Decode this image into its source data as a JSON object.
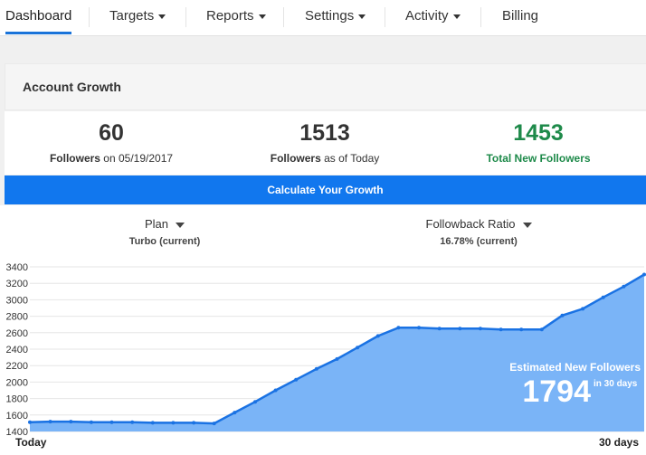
{
  "nav": {
    "items": [
      {
        "label": "Dashboard",
        "active": true
      },
      {
        "label": "Targets",
        "dropdown": true
      },
      {
        "label": "Reports",
        "dropdown": true
      },
      {
        "label": "Settings",
        "dropdown": true
      },
      {
        "label": "Activity",
        "dropdown": true
      },
      {
        "label": "Billing"
      }
    ]
  },
  "card": {
    "title": "Account Growth",
    "stats": [
      {
        "value": "60",
        "label_bold": "Followers",
        "label_rest": " on 05/19/2017"
      },
      {
        "value": "1513",
        "label_bold": "Followers",
        "label_rest": " as of Today"
      },
      {
        "value": "1453",
        "label_bold": "Total New Followers",
        "label_rest": ""
      }
    ],
    "calculate_button": "Calculate Your Growth",
    "plan": {
      "title": "Plan",
      "value": "Turbo (current)"
    },
    "followback": {
      "title": "Followback Ratio",
      "value": "16.78% (current)"
    }
  },
  "estimate": {
    "title": "Estimated New Followers",
    "value": "1794",
    "unit": "in 30 days"
  },
  "colors": {
    "accent": "#1177ee",
    "green": "#1e8a4a",
    "area_fill": "#7ab4f7",
    "line": "#1a72e3"
  },
  "chart_data": {
    "type": "area",
    "ylim": [
      1400,
      3400
    ],
    "yticks": [
      1400,
      1600,
      1800,
      2000,
      2200,
      2400,
      2600,
      2800,
      3000,
      3200,
      3400
    ],
    "x_start_label": "Today",
    "x_end_label": "30 days",
    "grid": true,
    "values": [
      1513,
      1520,
      1520,
      1513,
      1513,
      1513,
      1505,
      1505,
      1505,
      1498,
      1630,
      1760,
      1900,
      2030,
      2160,
      2280,
      2420,
      2560,
      2660,
      2660,
      2650,
      2650,
      2650,
      2640,
      2640,
      2640,
      2810,
      2890,
      3030,
      3160,
      3307
    ]
  }
}
